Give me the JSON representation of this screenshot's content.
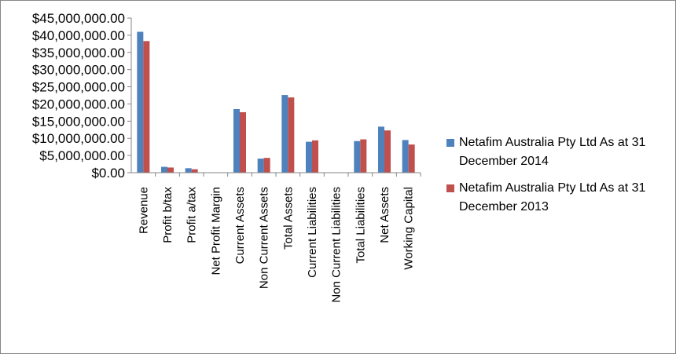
{
  "chart_data": {
    "type": "bar",
    "categories": [
      "Revenue",
      "Profit b/tax",
      "Profit a/tax",
      "Net Profit Margin",
      "Current Assets",
      "Non Current Assets",
      "Total Assets",
      "Current Liabilities",
      "Non Current Liabilities",
      "Total Liabilities",
      "Net Assets",
      "Working Capital"
    ],
    "series": [
      {
        "name": "Netafim Australia Pty Ltd As at 31 December 2014",
        "color": "#4F81BD",
        "values": [
          41000000,
          1700000,
          1300000,
          0,
          18500000,
          4100000,
          22600000,
          9000000,
          0,
          9200000,
          13400000,
          9500000
        ]
      },
      {
        "name": "Netafim Australia Pty Ltd As at 31 December 2013",
        "color": "#C0504D",
        "values": [
          38300000,
          1500000,
          1000000,
          0,
          17600000,
          4300000,
          21900000,
          9400000,
          0,
          9700000,
          12300000,
          8200000
        ]
      }
    ],
    "ylim": [
      0,
      45000000
    ],
    "yticks": [
      "$0.00",
      "$5,000,000.00",
      "$10,000,000.00",
      "$15,000,000.00",
      "$20,000,000.00",
      "$25,000,000.00",
      "$30,000,000.00",
      "$35,000,000.00",
      "$40,000,000.00",
      "$45,000,000.00"
    ],
    "title": "",
    "xlabel": "",
    "ylabel": "",
    "grid": false,
    "legend_position": "right"
  }
}
